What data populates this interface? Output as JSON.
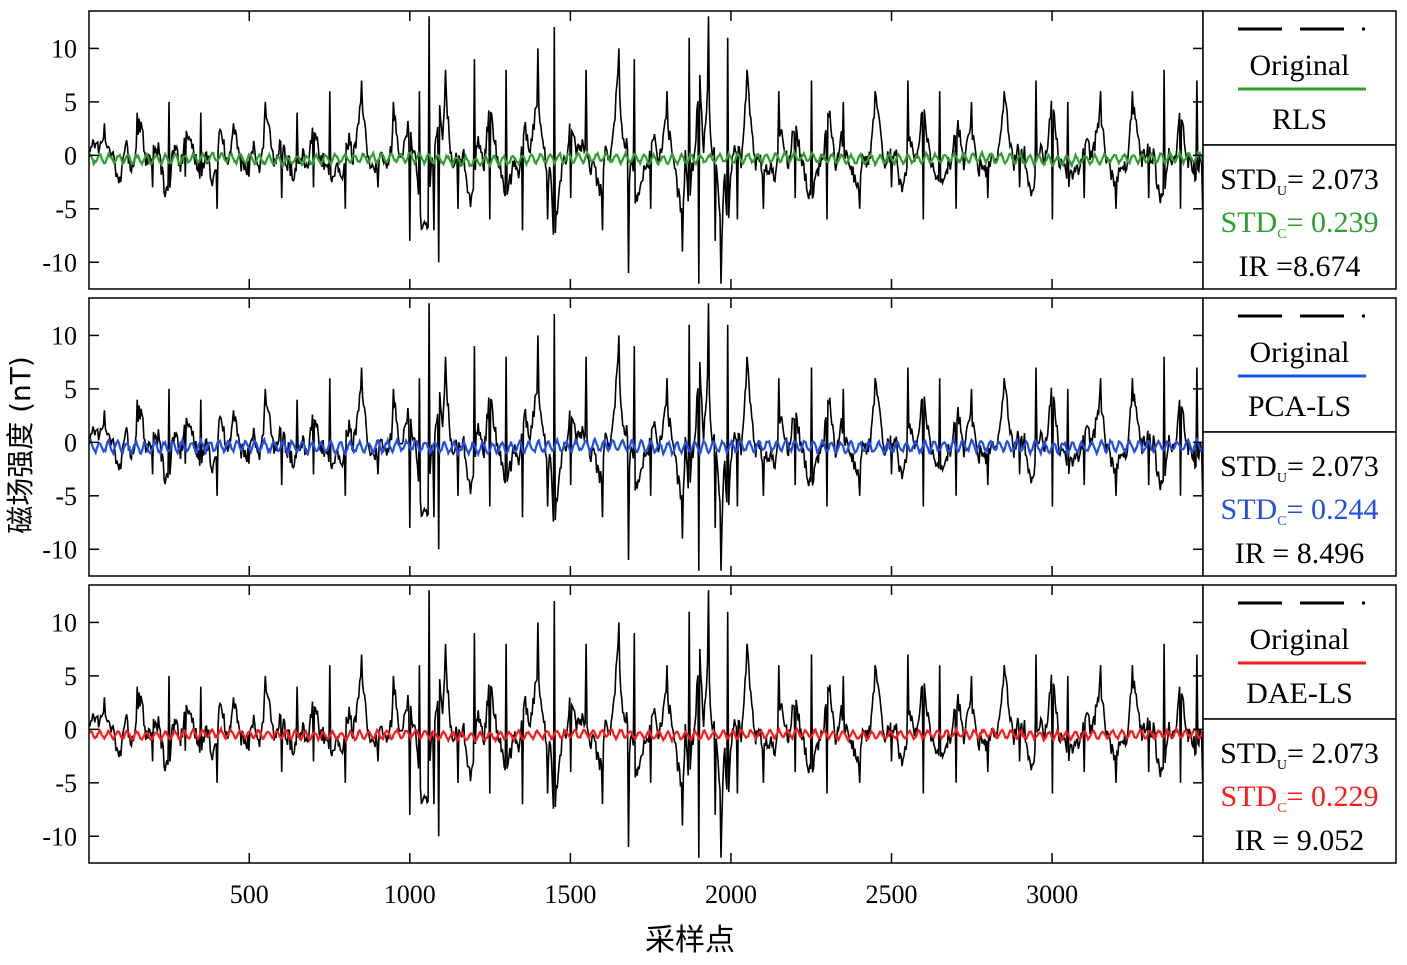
{
  "chart_data": {
    "type": "line",
    "title": "",
    "xlabel": "采样点",
    "ylabel": "磁场强度 (nT)",
    "xlim": [
      1,
      3470
    ],
    "ylim": [
      -12.5,
      13.5
    ],
    "x_ticks": [
      "500",
      "1000",
      "1500",
      "2000",
      "2500",
      "3000"
    ],
    "x_tick_values": [
      500,
      1000,
      1500,
      2000,
      2500,
      3000
    ],
    "y_ticks": [
      "10",
      "5",
      "0",
      "-5",
      "-10"
    ],
    "y_tick_values": [
      10,
      5,
      0,
      -5,
      -10
    ],
    "original": {
      "name": "Original",
      "color": "#000000",
      "x": [
        1,
        50,
        100,
        150,
        200,
        250,
        300,
        350,
        400,
        450,
        500,
        550,
        600,
        650,
        700,
        750,
        800,
        850,
        900,
        950,
        1000,
        1030,
        1060,
        1075,
        1090,
        1110,
        1150,
        1200,
        1250,
        1300,
        1350,
        1400,
        1430,
        1450,
        1500,
        1550,
        1600,
        1650,
        1680,
        1700,
        1750,
        1800,
        1850,
        1870,
        1900,
        1930,
        1950,
        1970,
        1990,
        2020,
        2050,
        2100,
        2150,
        2200,
        2250,
        2300,
        2350,
        2400,
        2450,
        2500,
        2550,
        2600,
        2650,
        2700,
        2750,
        2800,
        2850,
        2900,
        2950,
        3000,
        3050,
        3100,
        3150,
        3200,
        3250,
        3300,
        3350,
        3400,
        3450,
        3470
      ],
      "y": [
        0.5,
        3,
        -2.5,
        4,
        -3,
        5,
        -2,
        4,
        -5,
        3,
        -2,
        5,
        -4,
        4,
        -3,
        6,
        -5,
        7,
        -3,
        5,
        -8,
        6,
        13,
        -7,
        -10,
        8,
        -5,
        9,
        -6,
        8,
        -7,
        10,
        -6,
        12,
        -4,
        8,
        -7,
        10,
        -11,
        9,
        -5,
        6,
        -9,
        11,
        -12,
        13,
        -8,
        -12,
        11,
        -6,
        8,
        -5,
        6,
        -4,
        7,
        -6,
        5,
        -5,
        6,
        -3,
        7,
        -6,
        6,
        -5,
        5,
        -4,
        6,
        -3,
        7,
        -6,
        5,
        -4,
        6,
        -5,
        6,
        -4,
        8,
        -5,
        7,
        -5
      ]
    },
    "panels": [
      {
        "method": "RLS",
        "legend_original": "Original",
        "color": "#2ca02c",
        "std_u_label": "STD",
        "std_u_sub": "U",
        "std_u_value": "= 2.073",
        "std_c_label": "STD",
        "std_c_sub": "C",
        "std_c_value": "= 0.239",
        "ir_text": "IR =8.674",
        "series": {
          "name": "RLS",
          "offset": -0.3,
          "amplitude": 0.45,
          "x": [
            1,
            200,
            400,
            600,
            800,
            1000,
            1200,
            1400,
            1600,
            1800,
            2000,
            2200,
            2400,
            2600,
            2800,
            3000,
            3200,
            3470
          ],
          "y": [
            -0.3,
            -0.4,
            -0.2,
            -0.5,
            -0.3,
            -0.2,
            -0.6,
            -0.3,
            -0.2,
            -0.4,
            -0.3,
            -0.2,
            -0.4,
            -0.3,
            -0.2,
            -0.5,
            -0.3,
            -0.2
          ]
        }
      },
      {
        "method": "PCA-LS",
        "legend_original": "Original",
        "color": "#1f4fe6",
        "std_u_label": "STD",
        "std_u_sub": "U",
        "std_u_value": "= 2.073",
        "std_c_label": "STD",
        "std_c_sub": "C",
        "std_c_value": "= 0.244",
        "ir_text": "IR = 8.496",
        "series": {
          "name": "PCA-LS",
          "offset": -0.4,
          "amplitude": 0.55,
          "x": [
            1,
            200,
            400,
            600,
            800,
            1000,
            1200,
            1400,
            1600,
            1800,
            2000,
            2200,
            2400,
            2600,
            2800,
            3000,
            3200,
            3470
          ],
          "y": [
            -0.4,
            -0.5,
            -0.3,
            -0.4,
            -0.5,
            -0.3,
            -0.6,
            -0.4,
            -0.3,
            -0.5,
            -0.4,
            -0.3,
            -0.5,
            -0.4,
            -0.3,
            -0.5,
            -0.4,
            -0.3
          ]
        }
      },
      {
        "method": "DAE-LS",
        "legend_original": "Original",
        "color": "#ff1a1a",
        "std_u_label": "STD",
        "std_u_sub": "U",
        "std_u_value": "= 2.073",
        "std_c_label": "STD",
        "std_c_sub": "C",
        "std_c_value": "= 0.229",
        "ir_text": "IR = 9.052",
        "series": {
          "name": "DAE-LS",
          "offset": -0.5,
          "amplitude": 0.4,
          "x": [
            1,
            200,
            400,
            600,
            800,
            1000,
            1200,
            1400,
            1600,
            1800,
            2000,
            2200,
            2400,
            2600,
            2800,
            3000,
            3200,
            3470
          ],
          "y": [
            -0.5,
            -0.6,
            -0.4,
            -0.5,
            -0.6,
            -0.4,
            -0.7,
            -0.5,
            -0.4,
            -0.6,
            -0.5,
            -0.4,
            -0.6,
            -0.5,
            -0.4,
            -0.6,
            -0.5,
            -0.4
          ]
        }
      }
    ]
  }
}
